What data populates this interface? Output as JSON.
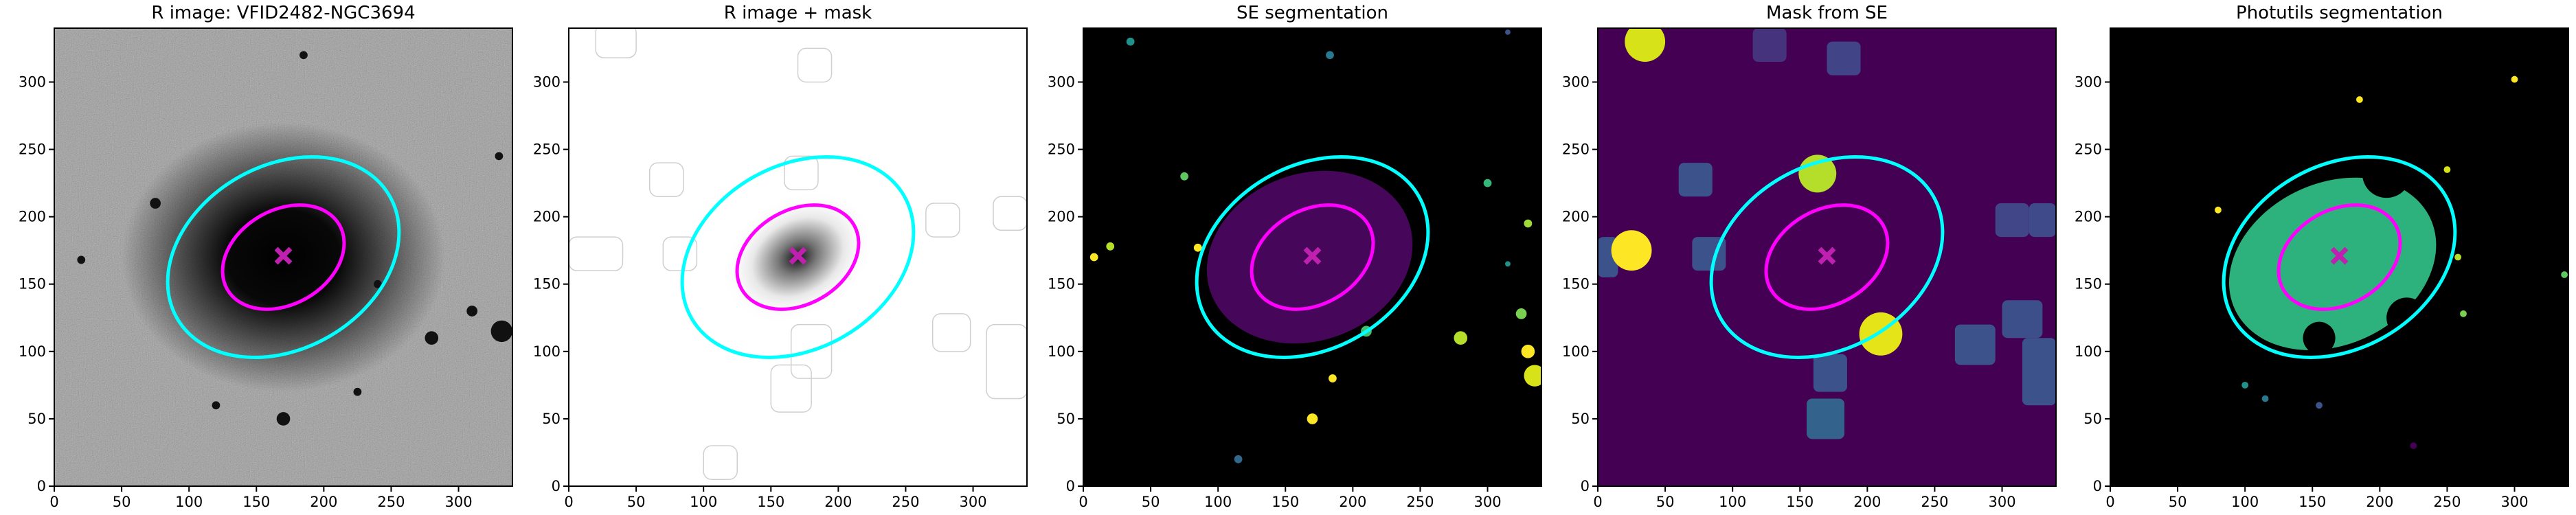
{
  "chart_data": [
    {
      "type": "image",
      "title": "R image: VFID2482-NGC3694",
      "xlim": [
        0,
        340
      ],
      "ylim": [
        0,
        340
      ],
      "xticks": [
        0,
        50,
        100,
        150,
        200,
        250,
        300
      ],
      "yticks": [
        0,
        50,
        100,
        150,
        200,
        250,
        300
      ],
      "ellipses": [
        {
          "color": "#00ffff",
          "cx": 170,
          "cy": 170,
          "width": 182,
          "height": 136,
          "angle": 30
        },
        {
          "color": "#ff00ff",
          "cx": 170,
          "cy": 170,
          "width": 96,
          "height": 70,
          "angle": 30
        }
      ],
      "marker": {
        "color": "#c020b0",
        "x": 170,
        "y": 171
      }
    },
    {
      "type": "image",
      "title": "R image + mask",
      "xlim": [
        0,
        340
      ],
      "ylim": [
        0,
        340
      ],
      "xticks": [
        0,
        50,
        100,
        150,
        200,
        250,
        300
      ],
      "yticks": [
        0,
        50,
        100,
        150,
        200,
        250,
        300
      ],
      "ellipses": [
        {
          "color": "#00ffff",
          "cx": 170,
          "cy": 170,
          "width": 182,
          "height": 136,
          "angle": 30
        },
        {
          "color": "#ff00ff",
          "cx": 170,
          "cy": 170,
          "width": 96,
          "height": 70,
          "angle": 30
        }
      ],
      "marker": {
        "color": "#c020b0",
        "x": 170,
        "y": 171
      }
    },
    {
      "type": "image",
      "title": "SE segmentation",
      "xlim": [
        0,
        340
      ],
      "ylim": [
        0,
        340
      ],
      "xticks": [
        0,
        50,
        100,
        150,
        200,
        250,
        300
      ],
      "yticks": [
        0,
        50,
        100,
        150,
        200,
        250,
        300
      ],
      "ellipses": [
        {
          "color": "#00ffff",
          "cx": 170,
          "cy": 170,
          "width": 182,
          "height": 136,
          "angle": 30
        },
        {
          "color": "#ff00ff",
          "cx": 170,
          "cy": 170,
          "width": 96,
          "height": 70,
          "angle": 30
        }
      ],
      "marker": {
        "color": "#c020b0",
        "x": 170,
        "y": 171
      }
    },
    {
      "type": "image",
      "title": "Mask from SE",
      "xlim": [
        0,
        340
      ],
      "ylim": [
        0,
        340
      ],
      "xticks": [
        0,
        50,
        100,
        150,
        200,
        250,
        300
      ],
      "yticks": [
        0,
        50,
        100,
        150,
        200,
        250,
        300
      ],
      "ellipses": [
        {
          "color": "#00ffff",
          "cx": 170,
          "cy": 170,
          "width": 182,
          "height": 136,
          "angle": 30
        },
        {
          "color": "#ff00ff",
          "cx": 170,
          "cy": 170,
          "width": 96,
          "height": 70,
          "angle": 30
        }
      ],
      "marker": {
        "color": "#c020b0",
        "x": 170,
        "y": 171
      }
    },
    {
      "type": "image",
      "title": "Photutils segmentation",
      "xlim": [
        0,
        340
      ],
      "ylim": [
        0,
        340
      ],
      "xticks": [
        0,
        50,
        100,
        150,
        200,
        250,
        300
      ],
      "yticks": [
        0,
        50,
        100,
        150,
        200,
        250,
        300
      ],
      "ellipses": [
        {
          "color": "#00ffff",
          "cx": 170,
          "cy": 170,
          "width": 182,
          "height": 136,
          "angle": 30
        },
        {
          "color": "#ff00ff",
          "cx": 170,
          "cy": 170,
          "width": 96,
          "height": 70,
          "angle": 30
        }
      ],
      "marker": {
        "color": "#c020b0",
        "x": 170,
        "y": 171
      }
    }
  ]
}
